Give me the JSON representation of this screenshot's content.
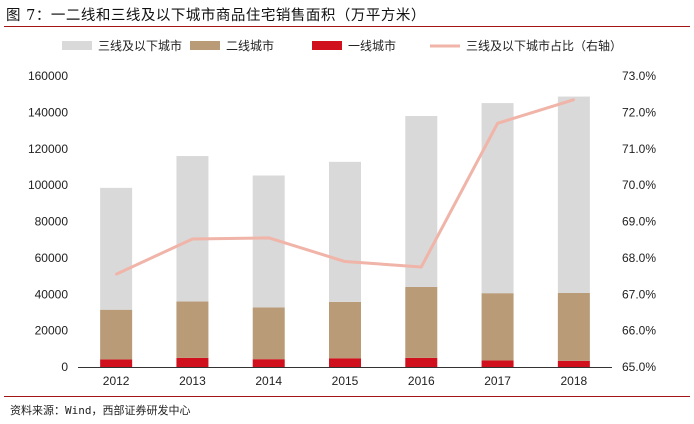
{
  "title": "图 7：一二线和三线及以下城市商品住宅销售面积（万平方米）",
  "source": "资料来源：Wind，西部证券研发中心",
  "chart_data": {
    "type": "bar",
    "stacked": true,
    "categories": [
      "2012",
      "2013",
      "2014",
      "2015",
      "2016",
      "2017",
      "2018"
    ],
    "series": [
      {
        "name": "一线城市",
        "kind": "bar",
        "axis": "left",
        "color": "#d0101c",
        "values": [
          4200,
          5000,
          4300,
          4800,
          5000,
          3600,
          3400
        ]
      },
      {
        "name": "二线城市",
        "kind": "bar",
        "axis": "left",
        "color": "#b99b78",
        "values": [
          27300,
          31000,
          28500,
          31000,
          39000,
          37000,
          37300
        ]
      },
      {
        "name": "三线及以下城市",
        "kind": "bar",
        "axis": "left",
        "color": "#d9d9d9",
        "values": [
          67000,
          80000,
          72500,
          77000,
          94000,
          104500,
          108000
        ]
      },
      {
        "name": "三线及以下城市占比（右轴）",
        "kind": "line",
        "axis": "right",
        "color": "#f0b4a8",
        "values": [
          67.55,
          68.52,
          68.55,
          67.9,
          67.75,
          71.7,
          72.35
        ]
      }
    ],
    "legend_order": [
      "三线及以下城市",
      "二线城市",
      "一线城市",
      "三线及以下城市占比（右轴）"
    ],
    "legend_position": "top",
    "y_left": {
      "min": 0,
      "max": 160000,
      "ticks": [
        "0",
        "20000",
        "40000",
        "60000",
        "80000",
        "100000",
        "120000",
        "140000",
        "160000"
      ]
    },
    "y_right": {
      "min": 65,
      "max": 73,
      "ticks": [
        "65.0%",
        "66.0%",
        "67.0%",
        "68.0%",
        "69.0%",
        "70.0%",
        "71.0%",
        "72.0%",
        "73.0%"
      ]
    },
    "grid": false
  }
}
